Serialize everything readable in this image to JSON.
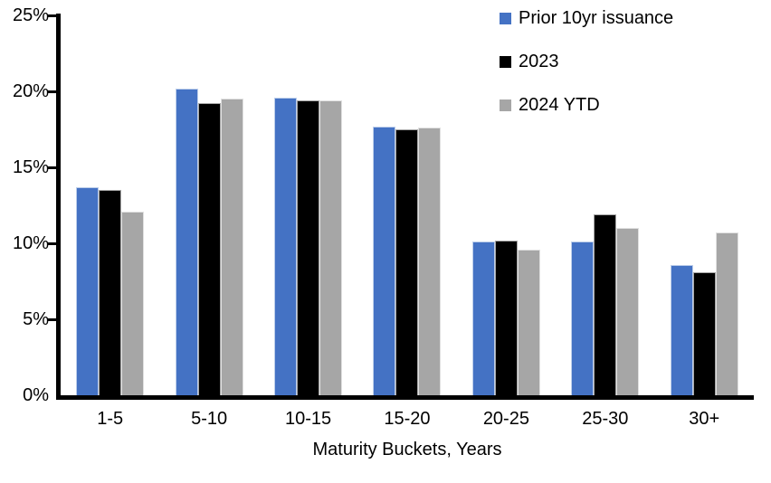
{
  "chart_data": {
    "type": "bar",
    "title": "",
    "categories": [
      "1-5",
      "5-10",
      "10-15",
      "15-20",
      "20-25",
      "25-30",
      "30+"
    ],
    "series": [
      {
        "name": "Prior 10yr issuance",
        "slug": "prior-10yr-issuance",
        "color": "#4472C4",
        "values": [
          13.7,
          20.2,
          19.6,
          17.7,
          10.1,
          10.1,
          8.6
        ]
      },
      {
        "name": "2023",
        "slug": "2023",
        "color": "#000000",
        "values": [
          13.5,
          19.2,
          19.4,
          17.5,
          10.2,
          11.9,
          8.1
        ]
      },
      {
        "name": "2024 YTD",
        "slug": "2024-ytd",
        "color": "#A6A6A6",
        "values": [
          12.1,
          19.5,
          19.4,
          17.6,
          9.6,
          11.0,
          10.7
        ]
      }
    ],
    "xlabel": "Maturity Buckets, Years",
    "ylabel": "",
    "ylim": [
      0,
      25
    ],
    "ytick_step": 5,
    "ytick_labels": [
      "0%",
      "5%",
      "10%",
      "15%",
      "20%",
      "25%"
    ],
    "legend_position": "top-right",
    "grid": false,
    "axis_color": "#000000",
    "background_color": "#FFFFFF"
  }
}
